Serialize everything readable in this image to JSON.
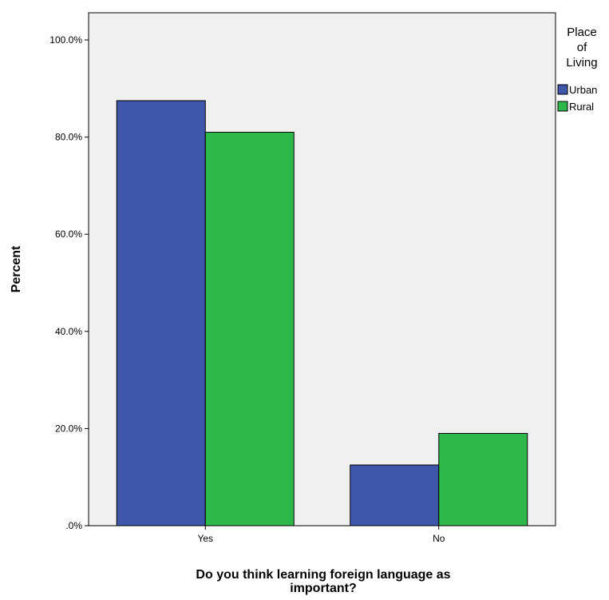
{
  "chart_data": {
    "type": "bar",
    "categories": [
      "Yes",
      "No"
    ],
    "series": [
      {
        "name": "Urban",
        "values": [
          87.5,
          12.5
        ],
        "color": "#3f57a8"
      },
      {
        "name": "Rural",
        "values": [
          81.0,
          19.0
        ],
        "color": "#2eb84a"
      }
    ],
    "xlabel_lines": [
      "Do you think learning foreign language as",
      "important?"
    ],
    "ylabel": "Percent",
    "ylim": [
      0,
      100
    ],
    "yticks": [
      {
        "value": 0,
        "label": ".0%"
      },
      {
        "value": 20,
        "label": "20.0%"
      },
      {
        "value": 40,
        "label": "40.0%"
      },
      {
        "value": 60,
        "label": "60.0%"
      },
      {
        "value": 80,
        "label": "80.0%"
      },
      {
        "value": 100,
        "label": "100.0%"
      }
    ],
    "legend": {
      "title_lines": [
        "Place",
        "of",
        "Living"
      ],
      "position": "right"
    },
    "plot_background": "#f0f0f0",
    "grid": false
  }
}
